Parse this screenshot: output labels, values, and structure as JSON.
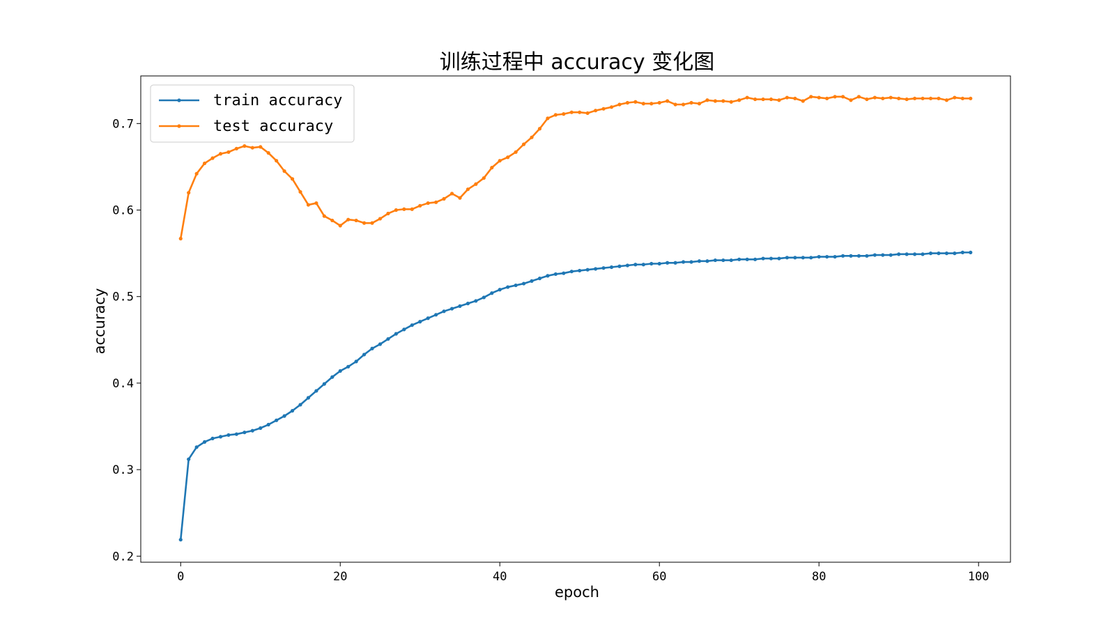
{
  "chart_data": {
    "type": "line",
    "title": "训练过程中 accuracy 变化图",
    "xlabel": "epoch",
    "ylabel": "accuracy",
    "xlim": [
      -5,
      104
    ],
    "ylim": [
      0.193,
      0.755
    ],
    "xticks": [
      0,
      20,
      40,
      60,
      80,
      100
    ],
    "xtick_labels": [
      "0",
      "20",
      "40",
      "60",
      "80",
      "100"
    ],
    "yticks": [
      0.2,
      0.3,
      0.4,
      0.5,
      0.6,
      0.7
    ],
    "ytick_labels": [
      "0.2",
      "0.3",
      "0.4",
      "0.5",
      "0.6",
      "0.7"
    ],
    "grid": false,
    "legend_position": "top-left",
    "x": [
      0,
      1,
      2,
      3,
      4,
      5,
      6,
      7,
      8,
      9,
      10,
      11,
      12,
      13,
      14,
      15,
      16,
      17,
      18,
      19,
      20,
      21,
      22,
      23,
      24,
      25,
      26,
      27,
      28,
      29,
      30,
      31,
      32,
      33,
      34,
      35,
      36,
      37,
      38,
      39,
      40,
      41,
      42,
      43,
      44,
      45,
      46,
      47,
      48,
      49,
      50,
      51,
      52,
      53,
      54,
      55,
      56,
      57,
      58,
      59,
      60,
      61,
      62,
      63,
      64,
      65,
      66,
      67,
      68,
      69,
      70,
      71,
      72,
      73,
      74,
      75,
      76,
      77,
      78,
      79,
      80,
      81,
      82,
      83,
      84,
      85,
      86,
      87,
      88,
      89,
      90,
      91,
      92,
      93,
      94,
      95,
      96,
      97,
      98,
      99
    ],
    "series": [
      {
        "name": "train accuracy",
        "color": "#1f77b4",
        "values": [
          0.219,
          0.312,
          0.326,
          0.332,
          0.336,
          0.338,
          0.34,
          0.341,
          0.343,
          0.345,
          0.348,
          0.352,
          0.357,
          0.362,
          0.368,
          0.375,
          0.383,
          0.391,
          0.399,
          0.407,
          0.414,
          0.419,
          0.425,
          0.433,
          0.44,
          0.445,
          0.451,
          0.457,
          0.462,
          0.467,
          0.471,
          0.475,
          0.479,
          0.483,
          0.486,
          0.489,
          0.492,
          0.495,
          0.499,
          0.504,
          0.508,
          0.511,
          0.513,
          0.515,
          0.518,
          0.521,
          0.524,
          0.526,
          0.527,
          0.529,
          0.53,
          0.531,
          0.532,
          0.533,
          0.534,
          0.535,
          0.536,
          0.537,
          0.537,
          0.538,
          0.538,
          0.539,
          0.539,
          0.54,
          0.54,
          0.541,
          0.541,
          0.542,
          0.542,
          0.542,
          0.543,
          0.543,
          0.543,
          0.544,
          0.544,
          0.544,
          0.545,
          0.545,
          0.545,
          0.545,
          0.546,
          0.546,
          0.546,
          0.547,
          0.547,
          0.547,
          0.547,
          0.548,
          0.548,
          0.548,
          0.549,
          0.549,
          0.549,
          0.549,
          0.55,
          0.55,
          0.55,
          0.55,
          0.551,
          0.551
        ]
      },
      {
        "name": "test accuracy",
        "color": "#ff7f0e",
        "values": [
          0.567,
          0.62,
          0.642,
          0.654,
          0.66,
          0.665,
          0.667,
          0.671,
          0.674,
          0.672,
          0.673,
          0.666,
          0.657,
          0.645,
          0.636,
          0.621,
          0.606,
          0.608,
          0.593,
          0.588,
          0.582,
          0.589,
          0.588,
          0.585,
          0.585,
          0.59,
          0.596,
          0.6,
          0.601,
          0.601,
          0.605,
          0.608,
          0.609,
          0.613,
          0.619,
          0.614,
          0.624,
          0.63,
          0.637,
          0.649,
          0.657,
          0.661,
          0.667,
          0.676,
          0.684,
          0.694,
          0.706,
          0.71,
          0.711,
          0.713,
          0.713,
          0.712,
          0.715,
          0.717,
          0.719,
          0.722,
          0.724,
          0.725,
          0.723,
          0.723,
          0.724,
          0.726,
          0.722,
          0.722,
          0.724,
          0.723,
          0.727,
          0.726,
          0.726,
          0.725,
          0.727,
          0.73,
          0.728,
          0.728,
          0.728,
          0.727,
          0.73,
          0.729,
          0.726,
          0.731,
          0.73,
          0.729,
          0.731,
          0.731,
          0.727,
          0.731,
          0.728,
          0.73,
          0.729,
          0.73,
          0.729,
          0.728,
          0.729,
          0.729,
          0.729,
          0.729,
          0.727,
          0.73,
          0.729,
          0.729
        ]
      }
    ]
  }
}
